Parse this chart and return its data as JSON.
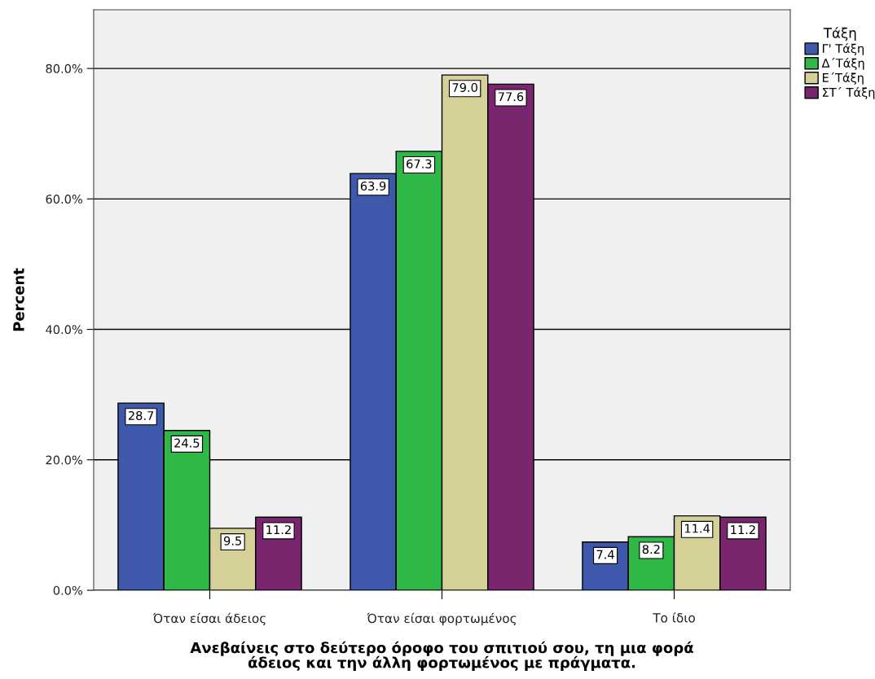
{
  "chart_data": {
    "type": "bar",
    "xlabel": "Ανεβαίνεις στο δεύτερο όροφο του σπιτιού σου, τη μια φορά\nάδειος και την άλλη φορτωμένος με πράγματα.",
    "ylabel": "Percent",
    "legend_title": "Τάξη",
    "categories": [
      "Όταν είσαι άδειος",
      "Όταν είσαι φορτωμένος",
      "Το ίδιο"
    ],
    "series": [
      {
        "name": "Γ' Τάξη",
        "color": "#3e58ac",
        "values": [
          28.7,
          63.9,
          7.4
        ],
        "value_labels": [
          "28.7",
          "63.9",
          "7.4"
        ]
      },
      {
        "name": "Δ΄Τάξη",
        "color": "#2fb847",
        "values": [
          24.5,
          67.3,
          8.2
        ],
        "value_labels": [
          "24.5",
          "67.3",
          "8.2"
        ]
      },
      {
        "name": "Ε΄Τάξη",
        "color": "#d5cf98",
        "values": [
          9.5,
          79.0,
          11.4
        ],
        "value_labels": [
          "9.5",
          "79.0",
          "11.4"
        ]
      },
      {
        "name": "ΣΤ΄ Τάξη",
        "color": "#79266f",
        "values": [
          11.2,
          77.6,
          11.2
        ],
        "value_labels": [
          "11.2",
          "77.6",
          "11.2"
        ]
      }
    ],
    "ylim": [
      0,
      89
    ],
    "yticks": [
      {
        "value": 0,
        "label": "0.0%"
      },
      {
        "value": 20,
        "label": "20.0%"
      },
      {
        "value": 40,
        "label": "40.0%"
      },
      {
        "value": 60,
        "label": "60.0%"
      },
      {
        "value": 80,
        "label": "80.0%"
      }
    ],
    "grid": "y",
    "legend": "top right"
  }
}
